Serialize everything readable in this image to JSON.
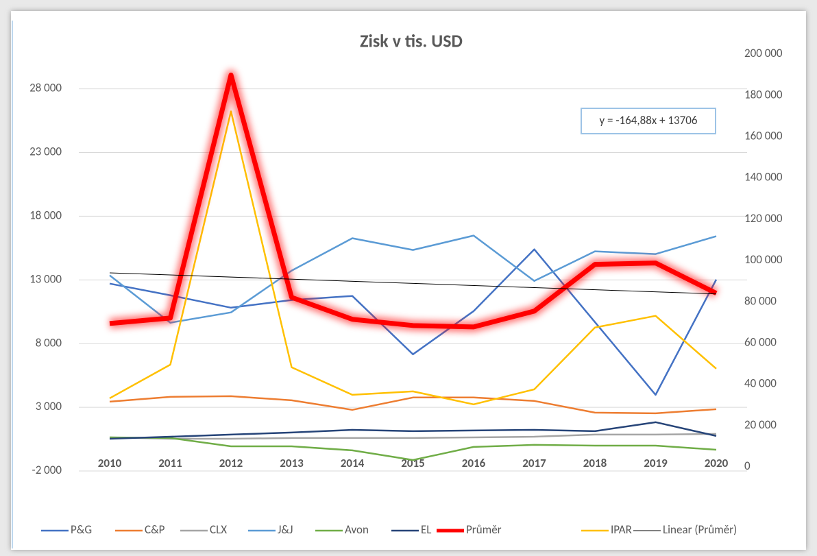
{
  "chart_data": {
    "type": "line",
    "title": "Zisk v tis. USD",
    "categories": [
      "2010",
      "2011",
      "2012",
      "2013",
      "2014",
      "2015",
      "2016",
      "2017",
      "2018",
      "2019",
      "2020"
    ],
    "ylim": [
      -2000,
      30400
    ],
    "yticks": [
      {
        "value": -2000,
        "label": "-2 000"
      },
      {
        "value": 3000,
        "label": "3 000"
      },
      {
        "value": 8000,
        "label": "8 000"
      },
      {
        "value": 13000,
        "label": "13 000"
      },
      {
        "value": 18000,
        "label": "18 000"
      },
      {
        "value": 23000,
        "label": "23 000"
      },
      {
        "value": 28000,
        "label": "28 000"
      }
    ],
    "y2lim": [
      0,
      200000
    ],
    "y2ticks": [
      0,
      {
        "value": 20000,
        "label": "20 000"
      },
      {
        "value": 40000,
        "label": "40 000"
      },
      {
        "value": 60000,
        "label": "60 000"
      },
      {
        "value": 80000,
        "label": "80 000"
      },
      {
        "value": 100000,
        "label": "100 000"
      },
      {
        "value": 120000,
        "label": "120 000"
      },
      {
        "value": 140000,
        "label": "140 000"
      },
      {
        "value": 160000,
        "label": "160 000"
      },
      {
        "value": 180000,
        "label": "180 000"
      },
      {
        "value": 200000,
        "label": "200 000"
      }
    ],
    "grid": true,
    "legend": "bottom",
    "series": [
      {
        "name": "P&G",
        "color": "#4472c4",
        "values": [
          12710,
          11790,
          10820,
          11420,
          11740,
          7160,
          10550,
          15400,
          9690,
          3980,
          13030
        ]
      },
      {
        "name": "C&P",
        "color": "#ed7d31",
        "values": [
          3440,
          3820,
          3870,
          3550,
          2800,
          3770,
          3770,
          3500,
          2580,
          2530,
          2850
        ]
      },
      {
        "name": "CLX",
        "color": "#a5a5a5",
        "values": [
          640,
          530,
          530,
          590,
          590,
          590,
          640,
          690,
          860,
          860,
          910
        ]
      },
      {
        "name": "J&J",
        "color": "#5b9bd5",
        "values": [
          13360,
          9640,
          10450,
          13730,
          16270,
          15350,
          16480,
          12920,
          15240,
          15030,
          16430
        ]
      },
      {
        "name": "Avon",
        "color": "#70ad47",
        "values": [
          640,
          590,
          -60,
          -60,
          -380,
          -1140,
          -110,
          50,
          -10,
          -10,
          -330
        ]
      },
      {
        "name": "EL",
        "color": "#264478",
        "values": [
          530,
          690,
          860,
          1020,
          1230,
          1130,
          1180,
          1230,
          1130,
          1830,
          750
        ]
      },
      {
        "name": "Průměr",
        "color": "#ff0000",
        "width": 7,
        "glow": true,
        "values": [
          9580,
          10010,
          29090,
          11630,
          9910,
          9420,
          9310,
          10550,
          14220,
          14330,
          11950
        ],
        "trendline": {
          "name": "Linear (Průměr)",
          "color": "#000000",
          "equation": "y = -164,88x + 13706"
        }
      },
      {
        "name": "IPAR",
        "color": "#ffc000",
        "values": [
          3710,
          6350,
          26230,
          6140,
          3980,
          4250,
          3230,
          4410,
          9260,
          10180,
          6030
        ]
      }
    ]
  }
}
